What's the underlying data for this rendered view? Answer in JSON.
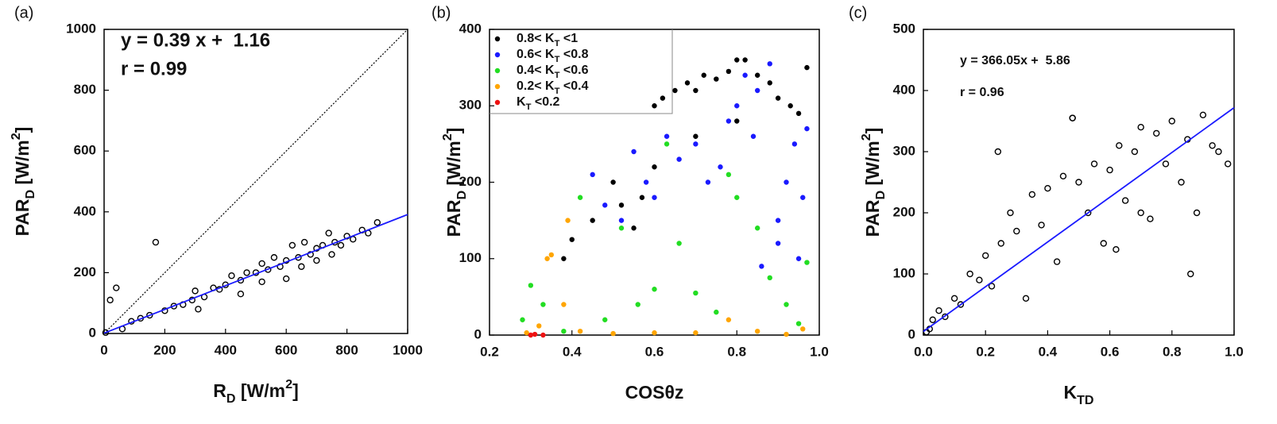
{
  "chart_data": [
    {
      "type": "scatter",
      "panel_label": "(a)",
      "marker": "open",
      "identity_line": true,
      "x_label": [
        {
          "text": "R"
        },
        {
          "text": "D",
          "script": "sub"
        },
        {
          "text": " [W/m"
        },
        {
          "text": "2",
          "script": "super"
        },
        {
          "text": "]"
        }
      ],
      "y_label": [
        {
          "text": "PAR"
        },
        {
          "text": "D",
          "script": "sub"
        },
        {
          "text": " [W/m"
        },
        {
          "text": "2",
          "script": "super"
        },
        {
          "text": "]"
        }
      ],
      "annotations": [
        "y = 0.39 x +  1.16",
        "r = 0.99"
      ],
      "fit": {
        "slope": 0.39,
        "intercept": 1.16,
        "color": "#1a1aff"
      },
      "xlim": [
        0,
        1000
      ],
      "ylim": [
        0,
        1000
      ],
      "xticks": [
        0,
        200,
        400,
        600,
        800,
        1000
      ],
      "yticks": [
        0,
        200,
        400,
        600,
        800,
        1000
      ],
      "series": [
        {
          "color": "#000000",
          "x": [
            5,
            20,
            40,
            60,
            90,
            120,
            150,
            170,
            200,
            230,
            260,
            290,
            300,
            330,
            360,
            380,
            400,
            420,
            450,
            470,
            500,
            520,
            540,
            560,
            580,
            600,
            620,
            640,
            660,
            680,
            700,
            720,
            740,
            760,
            780,
            800,
            820,
            850,
            870,
            900,
            310,
            450,
            520,
            600,
            650,
            700,
            750
          ],
          "values": [
            3,
            110,
            150,
            15,
            40,
            50,
            60,
            300,
            75,
            90,
            95,
            110,
            140,
            120,
            150,
            145,
            160,
            190,
            175,
            200,
            200,
            230,
            210,
            250,
            220,
            240,
            290,
            250,
            300,
            260,
            280,
            290,
            330,
            300,
            290,
            320,
            310,
            340,
            330,
            365,
            80,
            130,
            170,
            180,
            220,
            240,
            260
          ]
        }
      ]
    },
    {
      "type": "scatter",
      "panel_label": "(b)",
      "marker": "filled",
      "legend": "upper left",
      "x_label": [
        {
          "text": "COSθz"
        }
      ],
      "y_label": [
        {
          "text": "PAR"
        },
        {
          "text": "D",
          "script": "sub"
        },
        {
          "text": " [W/m"
        },
        {
          "text": "2",
          "script": "super"
        },
        {
          "text": "]"
        }
      ],
      "xlim": [
        0.2,
        1.0
      ],
      "ylim": [
        0,
        400
      ],
      "xticks": [
        0.2,
        0.4,
        0.6,
        0.8,
        {
          "value": 1.0,
          "label": "1.0"
        }
      ],
      "yticks": [
        0,
        100,
        200,
        300,
        400
      ],
      "series": [
        {
          "name": [
            {
              "text": "0.8< K"
            },
            {
              "text": "T",
              "script": "sub"
            },
            {
              "text": " <1"
            }
          ],
          "color": "#000000",
          "x": [
            0.38,
            0.4,
            0.45,
            0.5,
            0.52,
            0.55,
            0.57,
            0.6,
            0.62,
            0.65,
            0.68,
            0.7,
            0.72,
            0.75,
            0.78,
            0.8,
            0.82,
            0.85,
            0.88,
            0.9,
            0.93,
            0.95,
            0.97,
            0.6,
            0.7,
            0.8
          ],
          "values": [
            100,
            125,
            150,
            200,
            170,
            140,
            180,
            300,
            310,
            320,
            330,
            320,
            340,
            335,
            345,
            360,
            360,
            340,
            330,
            310,
            300,
            290,
            350,
            220,
            260,
            280
          ]
        },
        {
          "name": [
            {
              "text": "0.6< K"
            },
            {
              "text": "T",
              "script": "sub"
            },
            {
              "text": " <0.8"
            }
          ],
          "color": "#1a1aff",
          "x": [
            0.45,
            0.48,
            0.52,
            0.55,
            0.58,
            0.6,
            0.63,
            0.66,
            0.7,
            0.73,
            0.76,
            0.78,
            0.8,
            0.82,
            0.84,
            0.86,
            0.88,
            0.9,
            0.92,
            0.94,
            0.96,
            0.97,
            0.85,
            0.9,
            0.95
          ],
          "values": [
            210,
            170,
            150,
            240,
            200,
            180,
            260,
            230,
            250,
            200,
            220,
            280,
            300,
            340,
            260,
            90,
            355,
            150,
            200,
            250,
            180,
            270,
            320,
            120,
            100
          ]
        },
        {
          "name": [
            {
              "text": "0.4< K"
            },
            {
              "text": "T",
              "script": "sub"
            },
            {
              "text": " <0.6"
            }
          ],
          "color": "#22dd22",
          "x": [
            0.28,
            0.3,
            0.33,
            0.38,
            0.42,
            0.48,
            0.52,
            0.56,
            0.6,
            0.63,
            0.66,
            0.7,
            0.75,
            0.78,
            0.8,
            0.85,
            0.88,
            0.92,
            0.95,
            0.97
          ],
          "values": [
            20,
            65,
            40,
            5,
            180,
            20,
            140,
            40,
            60,
            250,
            120,
            55,
            30,
            210,
            180,
            140,
            75,
            40,
            15,
            95
          ]
        },
        {
          "name": [
            {
              "text": "0.2< K"
            },
            {
              "text": "T",
              "script": "sub"
            },
            {
              "text": " <0.4"
            }
          ],
          "color": "#ffa500",
          "x": [
            0.29,
            0.32,
            0.34,
            0.35,
            0.38,
            0.39,
            0.42,
            0.5,
            0.6,
            0.7,
            0.78,
            0.85,
            0.92,
            0.96
          ],
          "values": [
            3,
            12,
            100,
            105,
            40,
            150,
            5,
            2,
            3,
            3,
            20,
            5,
            1,
            8
          ]
        },
        {
          "name": [
            {
              "text": "K"
            },
            {
              "text": "T",
              "script": "sub"
            },
            {
              "text": " <0.2"
            }
          ],
          "color": "#ee1111",
          "x": [
            0.3,
            0.31,
            0.33
          ],
          "values": [
            0,
            1,
            0
          ]
        }
      ]
    },
    {
      "type": "scatter",
      "panel_label": "(c)",
      "marker": "open",
      "x_label": [
        {
          "text": "K"
        },
        {
          "text": "TD",
          "script": "sub"
        }
      ],
      "y_label": [
        {
          "text": "PAR"
        },
        {
          "text": "D",
          "script": "sub"
        },
        {
          "text": " [W/m"
        },
        {
          "text": "2",
          "script": "super"
        },
        {
          "text": "]"
        }
      ],
      "annotations": [
        "y = 366.05x +  5.86",
        "r = 0.96"
      ],
      "fit": {
        "slope": 366.05,
        "intercept": 5.86,
        "color": "#1a1aff"
      },
      "xlim": [
        0,
        1.0
      ],
      "ylim": [
        0,
        500
      ],
      "xticks": [
        {
          "value": 0,
          "label": "0.0"
        },
        0.2,
        0.4,
        0.6,
        0.8,
        {
          "value": 1.0,
          "label": "1.0"
        }
      ],
      "yticks": [
        0,
        100,
        200,
        300,
        400,
        500
      ],
      "series": [
        {
          "color": "#000000",
          "x": [
            0.01,
            0.02,
            0.03,
            0.05,
            0.07,
            0.1,
            0.12,
            0.15,
            0.18,
            0.2,
            0.22,
            0.25,
            0.28,
            0.3,
            0.33,
            0.35,
            0.38,
            0.4,
            0.43,
            0.45,
            0.48,
            0.5,
            0.53,
            0.55,
            0.58,
            0.6,
            0.63,
            0.65,
            0.68,
            0.7,
            0.73,
            0.75,
            0.78,
            0.8,
            0.83,
            0.85,
            0.88,
            0.9,
            0.93,
            0.95,
            0.98,
            0.24,
            0.48,
            0.62,
            0.7,
            0.86
          ],
          "values": [
            5,
            10,
            25,
            40,
            30,
            60,
            50,
            100,
            90,
            130,
            80,
            150,
            200,
            170,
            60,
            230,
            180,
            240,
            120,
            260,
            355,
            250,
            200,
            280,
            150,
            270,
            310,
            220,
            300,
            340,
            190,
            330,
            280,
            350,
            250,
            320,
            200,
            360,
            310,
            300,
            280,
            300,
            355,
            140,
            200,
            100
          ]
        }
      ]
    }
  ]
}
